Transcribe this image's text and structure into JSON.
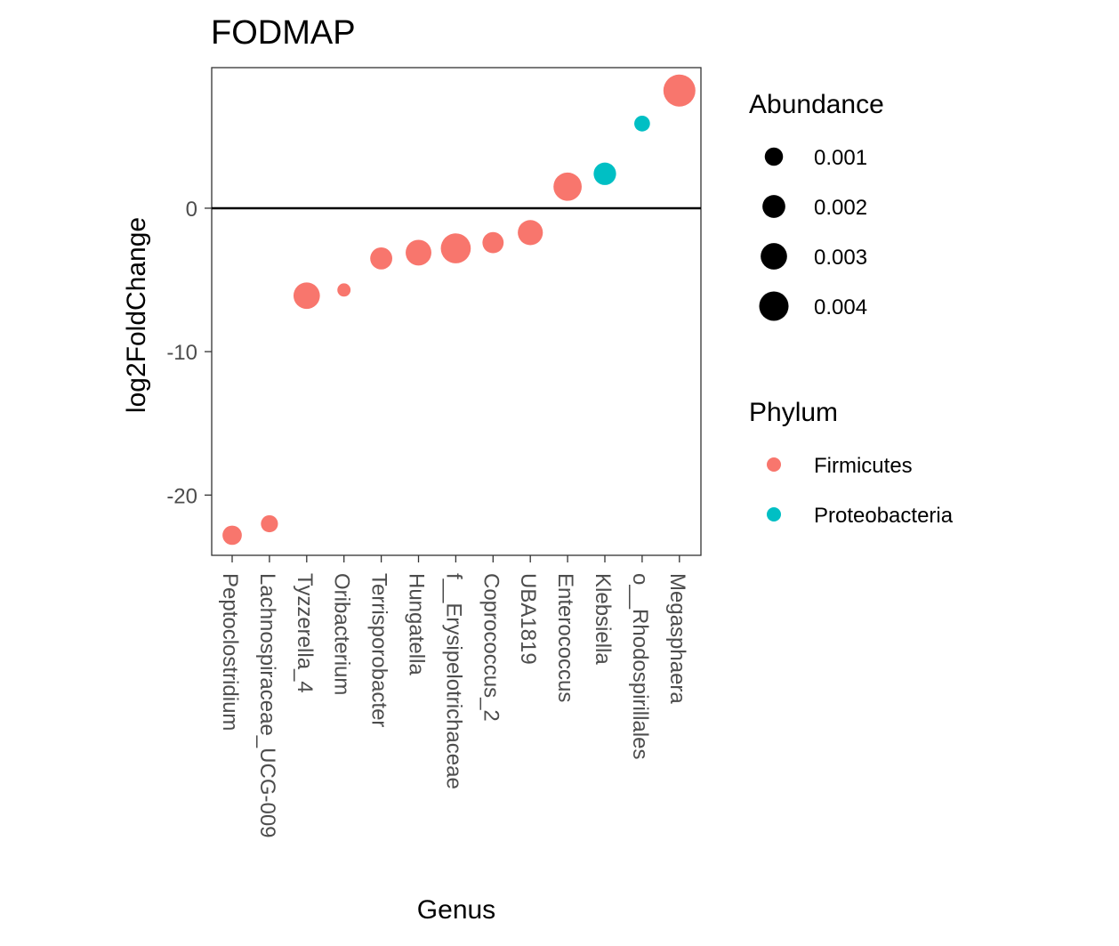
{
  "chart_data": {
    "type": "scatter",
    "title": "FODMAP",
    "xlabel": "Genus",
    "ylabel": "log2FoldChange",
    "categories": [
      "Peptoclostridium",
      "Lachnospiraceae_UCG-009",
      "Tyzzerella_4",
      "Oribacterium",
      "Terrisporobacter",
      "Hungatella",
      "f__Erysipelotrichaceae",
      "Coprococcus_2",
      "UBA1819",
      "Enterococcus",
      "Klebsiella",
      "o__Rhodospirillales",
      "Megasphaera"
    ],
    "ylim": [
      -24.2,
      9.8
    ],
    "yticks": [
      0,
      -10,
      -20
    ],
    "ytick_labels": [
      "0",
      "-10",
      "-20"
    ],
    "hline": 0,
    "grid": false,
    "legend_position": "right",
    "points": [
      {
        "genus": "Peptoclostridium",
        "log2FoldChange": -22.8,
        "abundance": 0.0012,
        "phylum": "Firmicutes"
      },
      {
        "genus": "Lachnospiraceae_UCG-009",
        "log2FoldChange": -22.0,
        "abundance": 0.0008,
        "phylum": "Firmicutes"
      },
      {
        "genus": "Tyzzerella_4",
        "log2FoldChange": -6.1,
        "abundance": 0.003,
        "phylum": "Firmicutes"
      },
      {
        "genus": "Oribacterium",
        "log2FoldChange": -5.7,
        "abundance": 0.0003,
        "phylum": "Firmicutes"
      },
      {
        "genus": "Terrisporobacter",
        "log2FoldChange": -3.5,
        "abundance": 0.0018,
        "phylum": "Firmicutes"
      },
      {
        "genus": "Hungatella",
        "log2FoldChange": -3.1,
        "abundance": 0.0028,
        "phylum": "Firmicutes"
      },
      {
        "genus": "f__Erysipelotrichaceae",
        "log2FoldChange": -2.8,
        "abundance": 0.0042,
        "phylum": "Firmicutes"
      },
      {
        "genus": "Coprococcus_2",
        "log2FoldChange": -2.4,
        "abundance": 0.0016,
        "phylum": "Firmicutes"
      },
      {
        "genus": "UBA1819",
        "log2FoldChange": -1.7,
        "abundance": 0.0026,
        "phylum": "Firmicutes"
      },
      {
        "genus": "Enterococcus",
        "log2FoldChange": 1.5,
        "abundance": 0.0036,
        "phylum": "Firmicutes"
      },
      {
        "genus": "Klebsiella",
        "log2FoldChange": 2.4,
        "abundance": 0.0019,
        "phylum": "Proteobacteria"
      },
      {
        "genus": "o__Rhodospirillales",
        "log2FoldChange": 5.9,
        "abundance": 0.0006,
        "phylum": "Proteobacteria"
      },
      {
        "genus": "Megasphaera",
        "log2FoldChange": 8.2,
        "abundance": 0.005,
        "phylum": "Firmicutes"
      }
    ],
    "legend": {
      "size_title": "Abundance",
      "size_entries": [
        {
          "label": "0.001",
          "value": 0.001
        },
        {
          "label": "0.002",
          "value": 0.002
        },
        {
          "label": "0.003",
          "value": 0.003
        },
        {
          "label": "0.004",
          "value": 0.004
        }
      ],
      "color_title": "Phylum",
      "color_entries": [
        {
          "label": "Firmicutes",
          "color": "#F8766D"
        },
        {
          "label": "Proteobacteria",
          "color": "#00BFC4"
        }
      ]
    },
    "colors": {
      "Firmicutes": "#F8766D",
      "Proteobacteria": "#00BFC4"
    }
  }
}
